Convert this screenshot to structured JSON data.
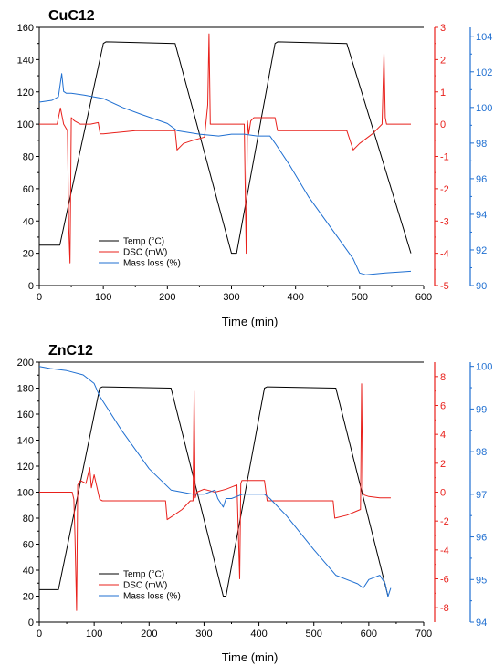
{
  "colors": {
    "temp": "#000000",
    "dsc": "#e8201b",
    "mass": "#1f6fd1"
  },
  "chart_data": [
    {
      "type": "line",
      "title": "CuC12",
      "xlabel": "Time (min)",
      "xlim": [
        0,
        600
      ],
      "x_ticks": [
        0,
        100,
        200,
        300,
        400,
        500,
        600
      ],
      "axes": {
        "left": {
          "series": "Temp (°C)",
          "ylim": [
            0,
            160
          ],
          "ticks": [
            0,
            20,
            40,
            60,
            80,
            100,
            120,
            140,
            160
          ]
        },
        "right1": {
          "series": "DSC (mW)",
          "ylim": [
            -5,
            3
          ],
          "ticks": [
            -5,
            -4,
            -3,
            -2,
            -1,
            0,
            1,
            2,
            3
          ]
        },
        "right2": {
          "series": "Mass loss (%)",
          "ylim": [
            90,
            104.5
          ],
          "ticks": [
            90,
            92,
            94,
            96,
            98,
            100,
            102,
            104
          ]
        }
      },
      "legend": {
        "placement": "lower-left",
        "entries": [
          "Temp (°C)",
          "DSC (mW)",
          "Mass loss (%)"
        ]
      },
      "series": [
        {
          "name": "Temp (°C)",
          "axis": "left",
          "x": [
            0,
            32,
            100,
            104,
            212,
            300,
            308,
            368,
            372,
            480,
            580
          ],
          "y": [
            25,
            25,
            150,
            151,
            150,
            20,
            20,
            150,
            151,
            150,
            20
          ]
        },
        {
          "name": "DSC (mW)",
          "axis": "right1",
          "x": [
            0,
            28,
            33,
            35,
            38,
            44,
            46,
            48,
            50,
            55,
            64,
            80,
            92,
            95,
            100,
            150,
            212,
            215,
            225,
            240,
            258,
            263,
            265,
            267,
            270,
            275,
            300,
            320,
            323,
            325,
            327,
            330,
            335,
            345,
            360,
            368,
            372,
            400,
            480,
            490,
            500,
            520,
            535,
            538,
            540,
            542,
            545,
            560,
            580
          ],
          "y": [
            0,
            0,
            0.5,
            0.3,
            0,
            -0.2,
            -3.2,
            -4.3,
            0.2,
            0.1,
            0,
            0,
            0.05,
            -0.3,
            -0.3,
            -0.2,
            -0.2,
            -0.8,
            -0.6,
            -0.5,
            -0.4,
            0.6,
            2.8,
            0,
            0,
            0,
            0,
            0,
            -4,
            0.1,
            -0.3,
            0.1,
            0.2,
            0.2,
            0.2,
            0.2,
            -0.2,
            -0.2,
            -0.2,
            -0.8,
            -0.6,
            -0.3,
            0,
            2.2,
            0.2,
            0,
            0,
            0,
            0
          ]
        },
        {
          "name": "Mass loss (%)",
          "axis": "right2",
          "x": [
            0,
            20,
            30,
            35,
            38,
            42,
            50,
            70,
            100,
            130,
            160,
            200,
            215,
            250,
            280,
            300,
            320,
            340,
            360,
            368,
            390,
            420,
            460,
            490,
            500,
            510,
            540,
            580
          ],
          "y": [
            100.3,
            100.4,
            100.6,
            101.9,
            100.9,
            100.8,
            100.8,
            100.7,
            100.5,
            100,
            99.6,
            99.1,
            98.7,
            98.5,
            98.4,
            98.5,
            98.5,
            98.4,
            98.4,
            98,
            96.8,
            95,
            93,
            91.5,
            90.7,
            90.6,
            90.7,
            90.8
          ]
        }
      ]
    },
    {
      "type": "line",
      "title": "ZnC12",
      "xlabel": "Time (min)",
      "xlim": [
        0,
        700
      ],
      "x_ticks": [
        0,
        100,
        200,
        300,
        400,
        500,
        600,
        700
      ],
      "axes": {
        "left": {
          "series": "Temp (°C)",
          "ylim": [
            0,
            200
          ],
          "ticks": [
            0,
            20,
            40,
            60,
            80,
            100,
            120,
            140,
            160,
            180,
            200
          ]
        },
        "right1": {
          "series": "DSC (mW)",
          "ylim": [
            -9,
            9
          ],
          "ticks": [
            -8,
            -6,
            -4,
            -2,
            0,
            2,
            4,
            6,
            8
          ]
        },
        "right2": {
          "series": "Mass loss (%)",
          "ylim": [
            94,
            100.1
          ],
          "ticks": [
            94,
            95,
            96,
            97,
            98,
            99,
            100
          ]
        }
      },
      "legend": {
        "placement": "lower-center",
        "entries": [
          "Temp (°C)",
          "DSC (mW)",
          "Mass loss (%)"
        ]
      },
      "series": [
        {
          "name": "Temp (°C)",
          "axis": "left",
          "x": [
            0,
            35,
            110,
            115,
            240,
            335,
            340,
            410,
            415,
            540,
            635
          ],
          "y": [
            25,
            25,
            180,
            181,
            180,
            20,
            20,
            180,
            181,
            180,
            20
          ]
        },
        {
          "name": "DSC (mW)",
          "axis": "right1",
          "x": [
            0,
            60,
            63,
            65,
            68,
            70,
            75,
            85,
            92,
            95,
            100,
            110,
            115,
            160,
            230,
            233,
            245,
            260,
            275,
            280,
            282,
            284,
            287,
            300,
            320,
            340,
            360,
            365,
            367,
            369,
            372,
            390,
            410,
            415,
            480,
            535,
            538,
            560,
            585,
            587,
            589,
            592,
            600,
            620,
            640
          ],
          "y": [
            0,
            0,
            -0.5,
            -3,
            -8.2,
            0.5,
            0.8,
            0.6,
            1.7,
            0.3,
            1.2,
            -0.5,
            -0.6,
            -0.6,
            -0.6,
            -1.9,
            -1.6,
            -1.2,
            -0.6,
            -0.6,
            7,
            -0.4,
            0,
            0.2,
            0,
            0.2,
            0.5,
            -6,
            0.6,
            0.8,
            0.8,
            0.8,
            0.8,
            -0.6,
            -0.6,
            -0.6,
            -1.8,
            -1.6,
            -1.2,
            7.5,
            0,
            -0.2,
            -0.3,
            -0.4,
            -0.4
          ]
        },
        {
          "name": "Mass loss (%)",
          "axis": "right2",
          "x": [
            0,
            20,
            50,
            80,
            100,
            110,
            150,
            200,
            240,
            280,
            300,
            320,
            325,
            335,
            340,
            350,
            370,
            400,
            410,
            420,
            450,
            500,
            540,
            560,
            580,
            590,
            600,
            620,
            630,
            635,
            640
          ],
          "y": [
            100,
            99.95,
            99.9,
            99.8,
            99.6,
            99.3,
            98.5,
            97.6,
            97.1,
            97,
            97,
            97.1,
            96.9,
            96.7,
            96.9,
            96.9,
            97,
            97,
            97,
            96.9,
            96.5,
            95.7,
            95.1,
            95,
            94.9,
            94.8,
            95,
            95.1,
            94.9,
            94.6,
            94.8
          ]
        }
      ]
    }
  ]
}
